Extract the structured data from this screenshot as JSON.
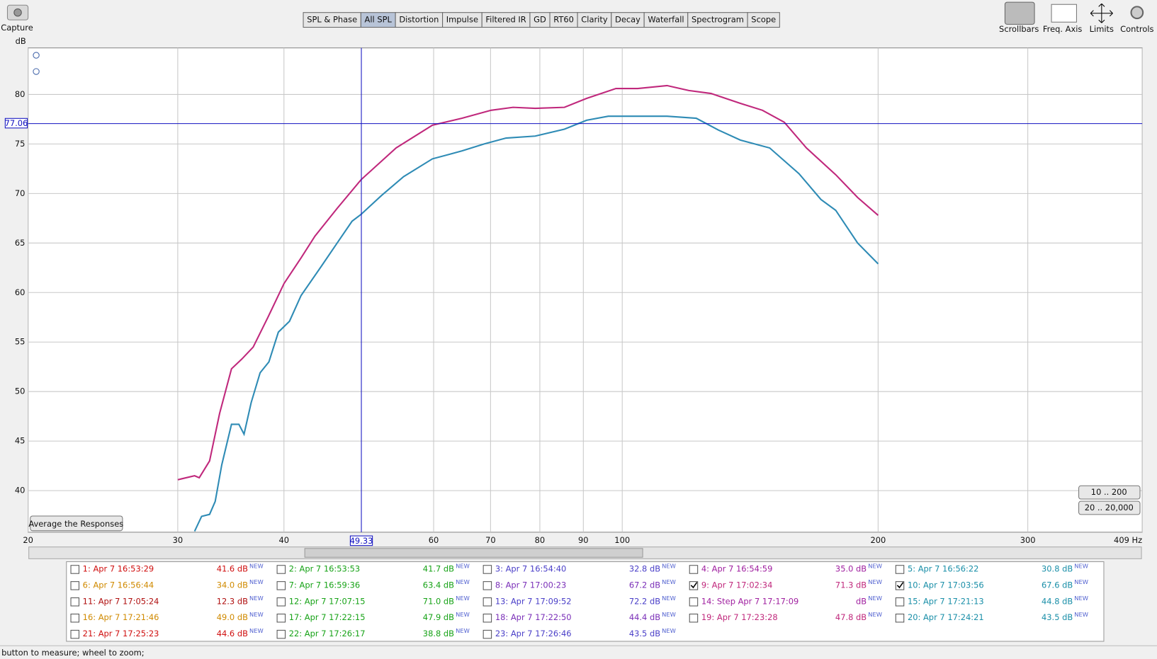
{
  "toolbar": {
    "capture": "Capture",
    "tabs": [
      "SPL & Phase",
      "All SPL",
      "Distortion",
      "Impulse",
      "Filtered IR",
      "GD",
      "RT60",
      "Clarity",
      "Decay",
      "Waterfall",
      "Spectrogram",
      "Scope"
    ],
    "active_tab": 1,
    "tools": [
      "Scrollbars",
      "Freq. Axis",
      "Limits",
      "Controls"
    ]
  },
  "chart_data": {
    "type": "line",
    "y_label": "dB",
    "xlim": [
      20,
      409
    ],
    "ylim": [
      35.8,
      84.7
    ],
    "x_scale": "log",
    "grid": true,
    "xticks": [
      20,
      30,
      40,
      60,
      70,
      80,
      90,
      100,
      200,
      300,
      {
        "value": 409,
        "label": "409 Hz"
      }
    ],
    "yticks": [
      40,
      45,
      50,
      55,
      60,
      65,
      70,
      75,
      80
    ],
    "cursor": {
      "x": 49.33,
      "y": 77.06
    },
    "series": [
      {
        "color": "#c0287c",
        "x": [
          30.0,
          31.4,
          31.8,
          32.7,
          33.6,
          34.7,
          35.7,
          36.8,
          38.3,
          40.0,
          41.9,
          43.5,
          46.2,
          49.3,
          54.2,
          59.8,
          64.8,
          70.1,
          74.4,
          79.0,
          85.5,
          90.8,
          98.3,
          104.3,
          112.9,
          119.8,
          127.2,
          137.7,
          146.2,
          155.1,
          164.7,
          178.3,
          189.2,
          200
        ],
        "values": [
          41.1,
          41.5,
          41.3,
          43.0,
          47.8,
          52.3,
          53.3,
          54.5,
          57.5,
          60.9,
          63.5,
          65.7,
          68.5,
          71.4,
          74.6,
          76.9,
          77.6,
          78.4,
          78.7,
          78.6,
          78.7,
          79.6,
          80.6,
          80.6,
          80.9,
          80.4,
          80.1,
          79.1,
          78.4,
          77.2,
          74.6,
          71.9,
          69.6,
          67.8
        ]
      },
      {
        "color": "#2e8bb5",
        "x": [
          31.4,
          32.0,
          32.7,
          33.2,
          33.8,
          34.7,
          35.4,
          35.9,
          36.6,
          37.5,
          38.4,
          39.4,
          40.6,
          41.9,
          44.3,
          46.2,
          48.1,
          49.3,
          52.1,
          55.3,
          59.8,
          64.8,
          68.8,
          73.0,
          79.0,
          85.5,
          90.8,
          96.3,
          104.3,
          112.9,
          122.2,
          129.8,
          137.7,
          149.1,
          161.4,
          171.3,
          178.3,
          189.2,
          200
        ],
        "values": [
          35.9,
          37.4,
          37.6,
          38.9,
          42.6,
          46.7,
          46.7,
          45.7,
          48.9,
          51.9,
          53.0,
          56.0,
          57.1,
          59.7,
          62.7,
          65.0,
          67.2,
          67.9,
          69.8,
          71.7,
          73.5,
          74.3,
          75.0,
          75.6,
          75.8,
          76.5,
          77.4,
          77.8,
          77.8,
          77.8,
          77.6,
          76.4,
          75.4,
          74.6,
          72.0,
          69.4,
          68.3,
          65.0,
          62.9
        ]
      }
    ]
  },
  "buttons": {
    "average": "Average the Responses",
    "range1": "10 .. 200",
    "range2": "20 .. 20,000"
  },
  "new_tag": "NEW",
  "measurements": [
    {
      "label": "1: Apr 7 16:53:29",
      "level": "41.6 dB",
      "color": "#d01010"
    },
    {
      "label": "2: Apr 7 16:53:53",
      "level": "41.7 dB",
      "color": "#17a317"
    },
    {
      "label": "3: Apr 7 16:54:40",
      "level": "32.8 dB",
      "color": "#4a3fc8"
    },
    {
      "label": "4: Apr 7 16:54:59",
      "level": "35.0 dB",
      "color": "#a020a0"
    },
    {
      "label": "5: Apr 7 16:56:22",
      "level": "30.8 dB",
      "color": "#1a8fa8"
    },
    {
      "label": "6: Apr 7 16:56:44",
      "level": "34.0 dB",
      "color": "#d08a00"
    },
    {
      "label": "7: Apr 7 16:59:36",
      "level": "63.4 dB",
      "color": "#17a317"
    },
    {
      "label": "8: Apr 7 17:00:23",
      "level": "67.2 dB",
      "color": "#7a2fb8"
    },
    {
      "label": "9: Apr 7 17:02:34",
      "level": "71.3 dB",
      "color": "#c0287c",
      "checked": true
    },
    {
      "label": "10: Apr 7 17:03:56",
      "level": "67.6 dB",
      "color": "#1a8fa8",
      "checked": true
    },
    {
      "label": "11: Apr 7 17:05:24",
      "level": "12.3 dB",
      "color": "#b01010"
    },
    {
      "label": "12: Apr 7 17:07:15",
      "level": "71.0 dB",
      "color": "#17a317"
    },
    {
      "label": "13: Apr 7 17:09:52",
      "level": "72.2 dB",
      "color": "#4a3fc8"
    },
    {
      "label": "14: Step Apr 7 17:17:09",
      "level": "dB",
      "color": "#a020a0"
    },
    {
      "label": "15: Apr 7 17:21:13",
      "level": "44.8 dB",
      "color": "#1a8fa8"
    },
    {
      "label": "16: Apr 7 17:21:46",
      "level": "49.0 dB",
      "color": "#d08a00"
    },
    {
      "label": "17: Apr 7 17:22:15",
      "level": "47.9 dB",
      "color": "#17a317"
    },
    {
      "label": "18: Apr 7 17:22:50",
      "level": "44.4 dB",
      "color": "#7a2fb8"
    },
    {
      "label": "19: Apr 7 17:23:28",
      "level": "47.8 dB",
      "color": "#c0287c"
    },
    {
      "label": "20: Apr 7 17:24:21",
      "level": "43.5 dB",
      "color": "#1a8fa8"
    },
    {
      "label": "21: Apr 7 17:25:23",
      "level": "44.6 dB",
      "color": "#d01010"
    },
    {
      "label": "22: Apr 7 17:26:17",
      "level": "38.8 dB",
      "color": "#17a317"
    },
    {
      "label": "23: Apr 7 17:26:46",
      "level": "43.5 dB",
      "color": "#4a3fc8"
    }
  ],
  "status": "button to measure; wheel to zoom;"
}
